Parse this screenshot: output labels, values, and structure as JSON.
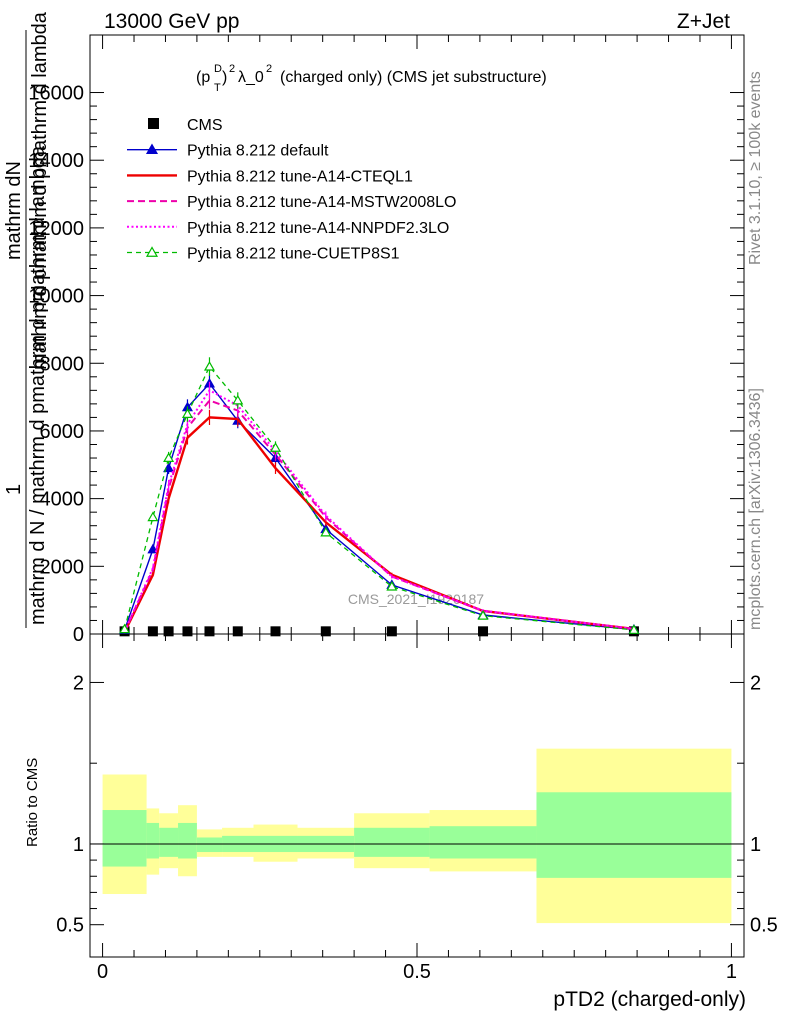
{
  "header": {
    "energy_label": "13000 GeV pp",
    "process_label": "Z+Jet"
  },
  "plot_title": "(p_T^D)^2 λ_0^2 (charged only) (CMS jet substructure)",
  "side_labels": {
    "rivet": "Rivet 3.1.10, ≥ 100k events",
    "mcplots": "mcplots.cern.ch [arXiv:1306.3436]"
  },
  "watermark": "CMS_2021_I1920187",
  "chart_data": [
    {
      "type": "line",
      "panel": "main",
      "xlabel": "pTD2 (charged-only)",
      "ylabel": "1 / (mathrm d N) mathrm d N / (mathrm d p mathrm d p mathrm d lambda)",
      "ylabel_lines": [
        "1",
        "mathrm dN",
        "mathrm d N / mathrm d pmathrm d pmathrm d lambda",
        "mathrm d pmathrm d pmathrm d lambda"
      ],
      "xlim": [
        -0.02,
        1.02
      ],
      "ylim": [
        0,
        17700
      ],
      "yticks": [
        0,
        2000,
        4000,
        6000,
        8000,
        10000,
        12000,
        14000,
        16000
      ],
      "ytick_labels": [
        "0",
        "2000",
        "4000",
        "6000",
        "8000",
        "10000",
        "12000",
        "14000",
        "16000"
      ],
      "legend_position": "top-left",
      "x": [
        0.035,
        0.08,
        0.105,
        0.135,
        0.17,
        0.215,
        0.275,
        0.355,
        0.46,
        0.605,
        0.845
      ],
      "series": [
        {
          "name": "CMS",
          "style": "marker-square",
          "color": "#000000",
          "values": [
            20,
            20,
            20,
            20,
            20,
            20,
            20,
            20,
            20,
            20,
            20
          ]
        },
        {
          "name": "Pythia 8.212 default",
          "style": "solid-triangle",
          "color": "#0000cc",
          "values": [
            120,
            2500,
            4900,
            6700,
            7400,
            6300,
            5200,
            3100,
            1450,
            560,
            130
          ]
        },
        {
          "name": "Pythia 8.212 tune-A14-CTEQL1",
          "style": "solid-thick",
          "color": "#ee0000",
          "values": [
            60,
            1750,
            4000,
            5800,
            6400,
            6350,
            4900,
            3300,
            1750,
            680,
            150
          ]
        },
        {
          "name": "Pythia 8.212 tune-A14-MSTW2008LO",
          "style": "dashed",
          "color": "#ee00aa",
          "values": [
            70,
            1900,
            4300,
            6100,
            6900,
            6600,
            5300,
            3450,
            1700,
            680,
            150
          ]
        },
        {
          "name": "Pythia 8.212 tune-A14-NNPDF2.3LO",
          "style": "dotted",
          "color": "#ff00ff",
          "values": [
            75,
            1950,
            4400,
            6200,
            7200,
            6750,
            5400,
            3500,
            1700,
            690,
            150
          ]
        },
        {
          "name": "Pythia 8.212 tune-CUETP8S1",
          "style": "dashed-open-triangle",
          "color": "#00bb00",
          "values": [
            140,
            3450,
            5200,
            6500,
            7900,
            6900,
            5500,
            3000,
            1400,
            540,
            120
          ]
        }
      ]
    },
    {
      "type": "area",
      "panel": "ratio",
      "xlabel": "pTD2 (charged-only)",
      "ylabel": "Ratio to CMS",
      "xlim": [
        -0.02,
        1.02
      ],
      "ylim": [
        0.3,
        2.3
      ],
      "yticks": [
        0.5,
        1,
        2
      ],
      "ytick_labels": [
        "0.5",
        "1",
        "2"
      ],
      "xticks": [
        0,
        0.5,
        1
      ],
      "xtick_labels": [
        "0",
        "0.5",
        "1"
      ],
      "bins": [
        {
          "x": [
            0.0,
            0.07
          ],
          "outer": [
            0.69,
            1.43
          ],
          "inner": [
            0.86,
            1.21
          ]
        },
        {
          "x": [
            0.07,
            0.09
          ],
          "outer": [
            0.81,
            1.22
          ],
          "inner": [
            0.91,
            1.13
          ]
        },
        {
          "x": [
            0.09,
            0.12
          ],
          "outer": [
            0.85,
            1.19
          ],
          "inner": [
            0.92,
            1.1
          ]
        },
        {
          "x": [
            0.12,
            0.15
          ],
          "outer": [
            0.8,
            1.24
          ],
          "inner": [
            0.91,
            1.13
          ]
        },
        {
          "x": [
            0.15,
            0.19
          ],
          "outer": [
            0.92,
            1.09
          ],
          "inner": [
            0.95,
            1.04
          ]
        },
        {
          "x": [
            0.19,
            0.24
          ],
          "outer": [
            0.92,
            1.1
          ],
          "inner": [
            0.95,
            1.05
          ]
        },
        {
          "x": [
            0.24,
            0.31
          ],
          "outer": [
            0.89,
            1.12
          ],
          "inner": [
            0.95,
            1.05
          ]
        },
        {
          "x": [
            0.31,
            0.4
          ],
          "outer": [
            0.91,
            1.1
          ],
          "inner": [
            0.95,
            1.05
          ]
        },
        {
          "x": [
            0.4,
            0.52
          ],
          "outer": [
            0.85,
            1.19
          ],
          "inner": [
            0.92,
            1.1
          ]
        },
        {
          "x": [
            0.52,
            0.69
          ],
          "outer": [
            0.83,
            1.21
          ],
          "inner": [
            0.91,
            1.11
          ]
        },
        {
          "x": [
            0.69,
            1.0
          ],
          "outer": [
            0.51,
            1.59
          ],
          "inner": [
            0.79,
            1.32
          ]
        }
      ],
      "colors": {
        "outer": "#ffff99",
        "inner": "#99ff99"
      }
    }
  ]
}
